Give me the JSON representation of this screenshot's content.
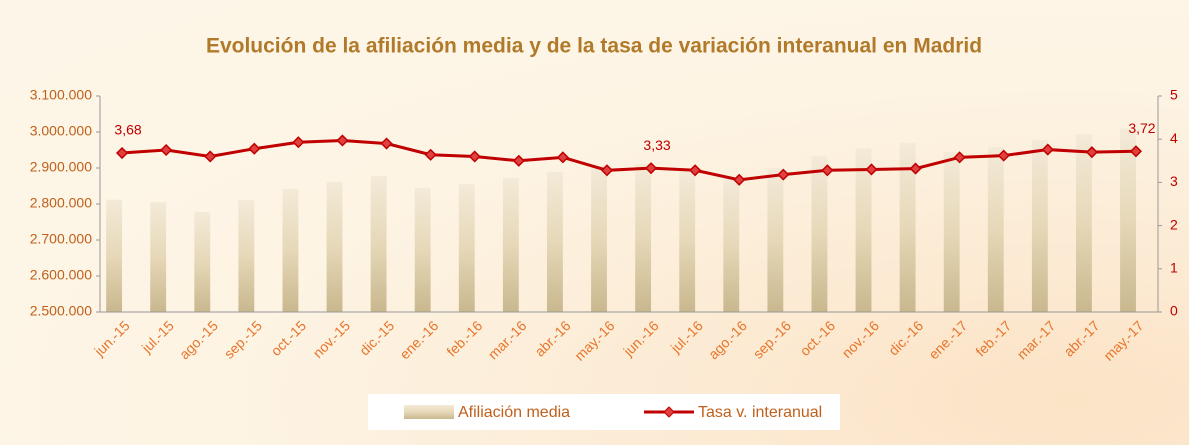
{
  "chart_data": {
    "type": "bar",
    "title": "Evolución de la afiliación media y de la tasa de variación interanual en Madrid",
    "categories": [
      "jun.-15",
      "jul.-15",
      "ago.-15",
      "sep.-15",
      "oct.-15",
      "nov.-15",
      "dic.-15",
      "ene.-16",
      "feb.-16",
      "mar.-16",
      "abr.-16",
      "may.-16",
      "jun.-16",
      "jul.-16",
      "ago.-16",
      "sep.-16",
      "oct.-16",
      "nov.-16",
      "dic.-16",
      "ene.-17",
      "feb.-17",
      "mar.-17",
      "abr.-17",
      "may.-17"
    ],
    "series": [
      {
        "name": "Afiliación media",
        "type": "bar",
        "color": "#e9dcc0",
        "values": [
          2812000,
          2805000,
          2778000,
          2811000,
          2842000,
          2861000,
          2878000,
          2844000,
          2855000,
          2872000,
          2889000,
          2905000,
          2911000,
          2894000,
          2872000,
          2900000,
          2933000,
          2955000,
          2969000,
          2944000,
          2958000,
          2978000,
          2994000,
          3010000
        ]
      },
      {
        "name": "Tasa v. interanual",
        "type": "line",
        "color": "#c00000",
        "axis": "y2",
        "values": [
          3.68,
          3.75,
          3.6,
          3.78,
          3.93,
          3.97,
          3.9,
          3.64,
          3.6,
          3.5,
          3.58,
          3.28,
          3.33,
          3.28,
          3.06,
          3.18,
          3.28,
          3.3,
          3.32,
          3.58,
          3.62,
          3.76,
          3.7,
          3.72
        ],
        "value_labels": [
          "3,68",
          null,
          null,
          null,
          null,
          null,
          null,
          null,
          null,
          null,
          null,
          null,
          "3,33",
          null,
          null,
          null,
          null,
          null,
          null,
          null,
          null,
          null,
          null,
          "3,72"
        ]
      }
    ],
    "ylim": [
      2500000,
      3100000
    ],
    "yticks": [
      {
        "value": 2500000,
        "label": "2.500.000"
      },
      {
        "value": 2600000,
        "label": "2.600.000"
      },
      {
        "value": 2700000,
        "label": "2.700.000"
      },
      {
        "value": 2800000,
        "label": "2.800.000"
      },
      {
        "value": 2900000,
        "label": "2.900.000"
      },
      {
        "value": 3000000,
        "label": "3.000.000"
      },
      {
        "value": 3100000,
        "label": "3.100.000"
      }
    ],
    "y2lim": [
      0,
      5
    ],
    "y2ticks": [
      0,
      1,
      2,
      3,
      4,
      5
    ],
    "legend": "bottom"
  }
}
